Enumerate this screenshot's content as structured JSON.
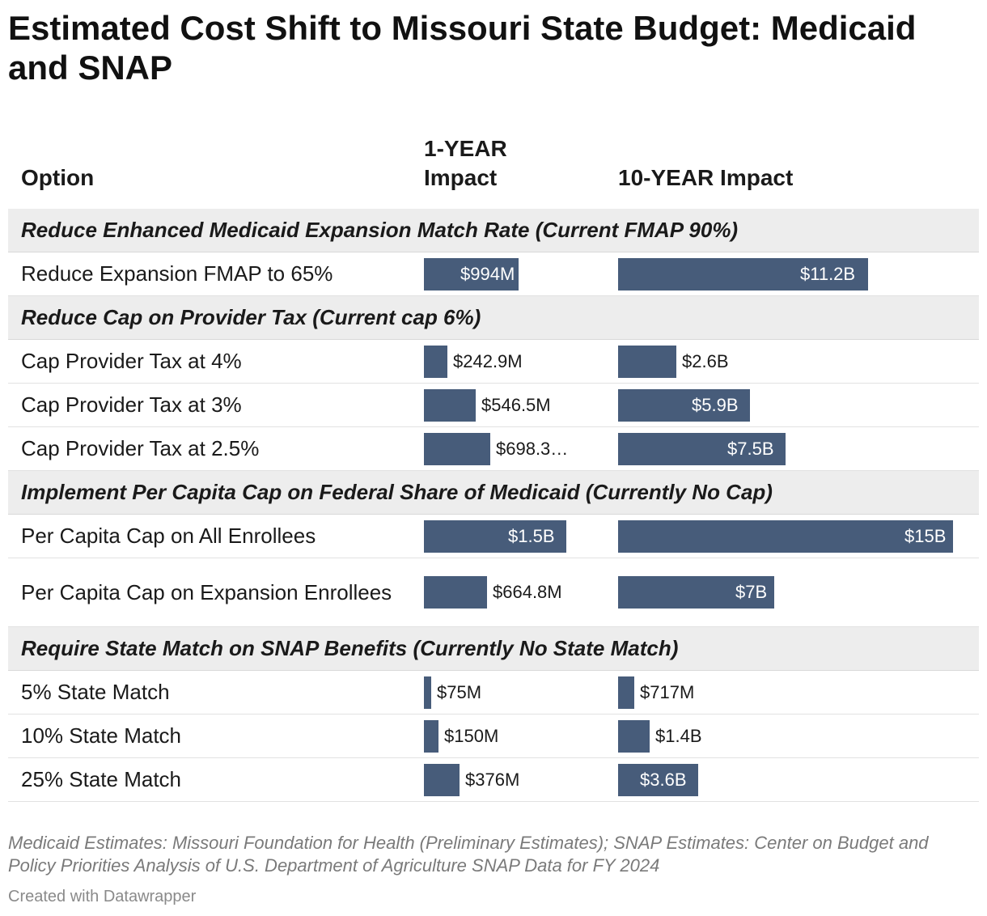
{
  "title": "Estimated Cost Shift to Missouri State Budget: Medicaid and SNAP",
  "columns": {
    "option": "Option",
    "one_year": "1-YEAR Impact",
    "ten_year": "10-YEAR Impact"
  },
  "notes": "Medicaid Estimates: Missouri Foundation for Health (Preliminary Estimates); SNAP Estimates: Center on Budget and Policy Priorities Analysis of U.S. Department of Agriculture SNAP Data for FY 2024",
  "credit": "Created with Datawrapper",
  "colors": {
    "bar": "#475c7a",
    "group_bg": "#ededed"
  },
  "chart_data": {
    "type": "table",
    "units": "USD",
    "scale": {
      "one_year_max": 1500000000,
      "ten_year_max": 15000000000
    },
    "groups": [
      {
        "name": "Reduce Enhanced Medicaid Expansion Match Rate (Current FMAP 90%)",
        "rows": [
          {
            "option": "Reduce Expansion FMAP to 65%",
            "one_year": 994000000,
            "one_year_label": "$994M",
            "ten_year": 11200000000,
            "ten_year_label": "$11.2B"
          }
        ]
      },
      {
        "name": "Reduce Cap on Provider Tax (Current cap 6%)",
        "rows": [
          {
            "option": "Cap Provider Tax at 4%",
            "one_year": 242900000,
            "one_year_label": "$242.9M",
            "ten_year": 2600000000,
            "ten_year_label": "$2.6B"
          },
          {
            "option": "Cap Provider Tax at 3%",
            "one_year": 546500000,
            "one_year_label": "$546.5M",
            "ten_year": 5900000000,
            "ten_year_label": "$5.9B"
          },
          {
            "option": "Cap Provider Tax at 2.5%",
            "one_year": 698300000,
            "one_year_label": "$698.3…",
            "ten_year": 7500000000,
            "ten_year_label": "$7.5B"
          }
        ]
      },
      {
        "name": "Implement Per Capita Cap on Federal Share of Medicaid (Currently No Cap)",
        "rows": [
          {
            "option": "Per Capita Cap on All Enrollees",
            "one_year": 1500000000,
            "one_year_label": "$1.5B",
            "ten_year": 15000000000,
            "ten_year_label": "$15B"
          },
          {
            "option": "Per Capita Cap on Expansion Enrollees",
            "one_year": 664800000,
            "one_year_label": "$664.8M",
            "ten_year": 7000000000,
            "ten_year_label": "$7B"
          }
        ]
      },
      {
        "name": "Require State Match on SNAP Benefits (Currently No State Match)",
        "rows": [
          {
            "option": "5% State Match",
            "one_year": 75000000,
            "one_year_label": "$75M",
            "ten_year": 717000000,
            "ten_year_label": "$717M"
          },
          {
            "option": "10% State Match",
            "one_year": 150000000,
            "one_year_label": "$150M",
            "ten_year": 1400000000,
            "ten_year_label": "$1.4B"
          },
          {
            "option": "25% State Match",
            "one_year": 376000000,
            "one_year_label": "$376M",
            "ten_year": 3600000000,
            "ten_year_label": "$3.6B"
          }
        ]
      }
    ]
  }
}
